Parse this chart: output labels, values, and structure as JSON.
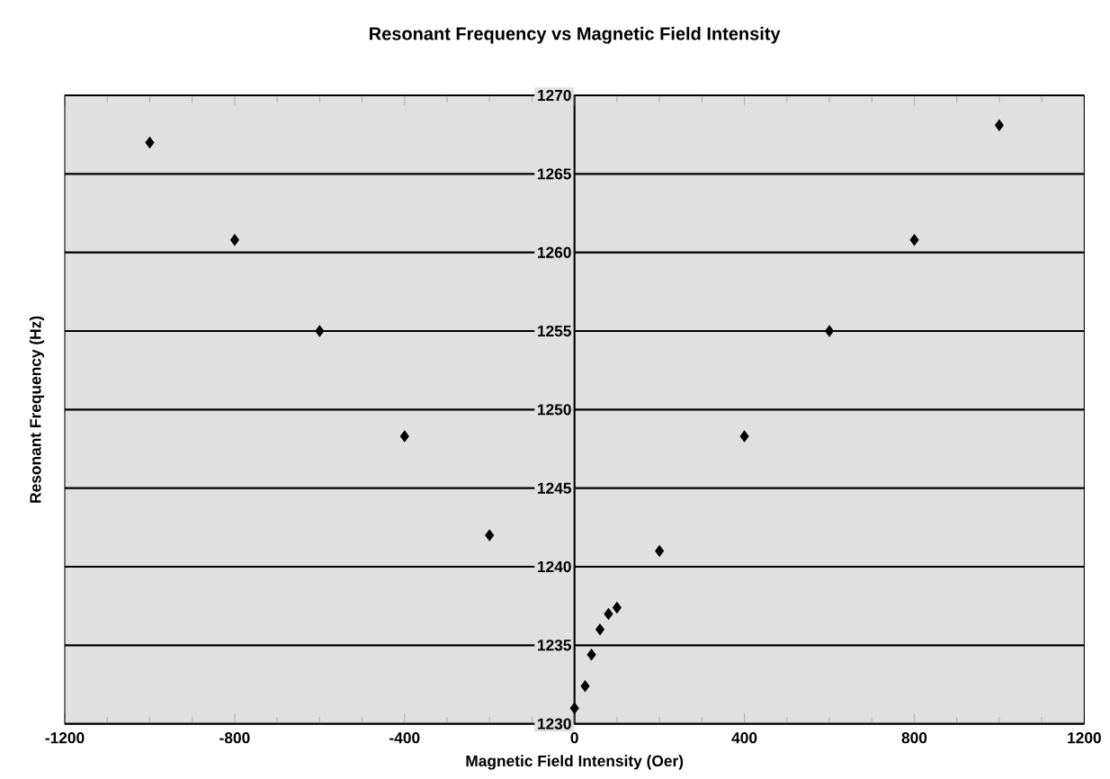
{
  "chart_data": {
    "type": "scatter",
    "title": "Resonant Frequency vs Magnetic Field Intensity",
    "xlabel": "Magnetic Field Intensity (Oer)",
    "ylabel": "Resonant Frequency (Hz)",
    "x": [
      -1000,
      -800,
      -600,
      -400,
      -200,
      0,
      25,
      40,
      60,
      80,
      100,
      200,
      400,
      600,
      800,
      1000
    ],
    "series": [
      {
        "color": "#000000",
        "values": [
          1267,
          1260.8,
          1255,
          1248.3,
          1242,
          1231,
          1232.4,
          1234.4,
          1236,
          1237,
          1237.4,
          1241,
          1248.3,
          1255,
          1260.8,
          1268.1
        ]
      }
    ],
    "xlim": [
      -1200,
      1200
    ],
    "ylim": [
      1230,
      1270
    ],
    "xticks": [
      -1200,
      -800,
      -400,
      0,
      400,
      800,
      1200
    ],
    "yticks": [
      1230,
      1235,
      1240,
      1245,
      1250,
      1255,
      1260,
      1265,
      1270
    ],
    "grid": "y",
    "marker": "diamond"
  }
}
